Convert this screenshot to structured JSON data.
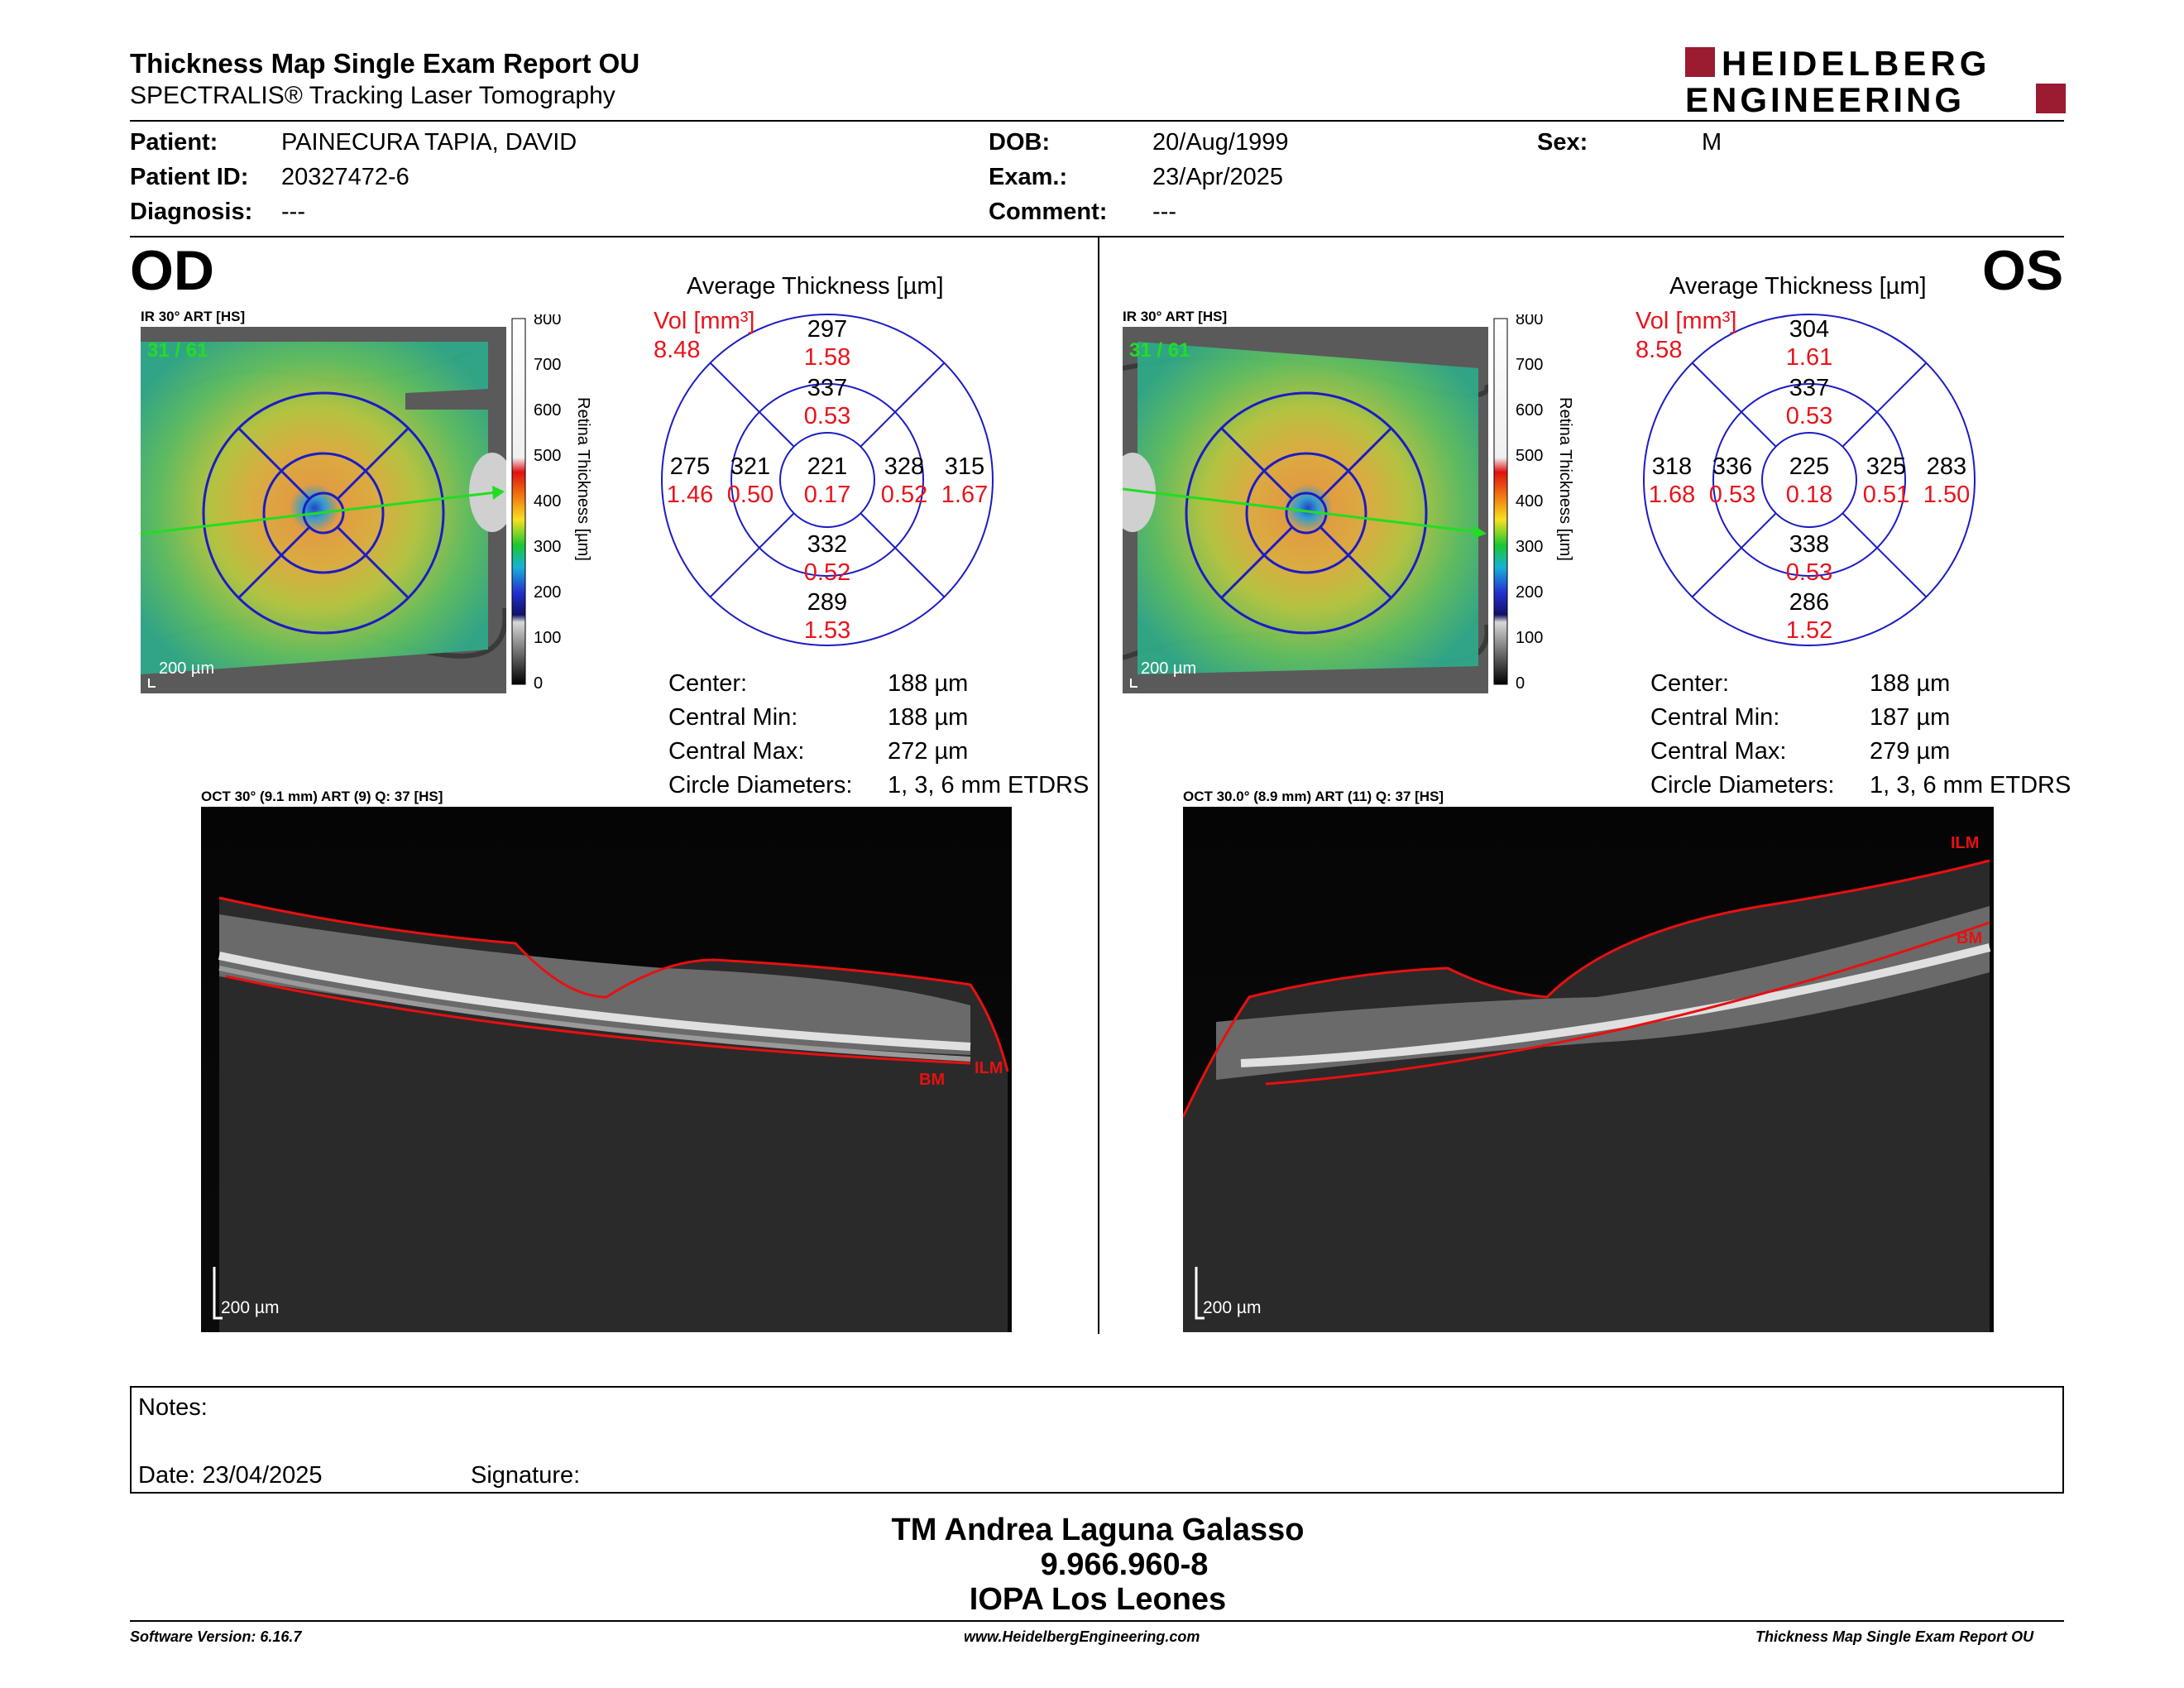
{
  "header": {
    "title": "Thickness Map Single Exam Report OU",
    "subtitle": "SPECTRALIS® Tracking Laser Tomography",
    "logo_line1": "HEIDELBERG",
    "logo_line2": "ENGINEERING",
    "brand_color": "#9b1b30"
  },
  "patient": {
    "patient_label": "Patient:",
    "patient_value": "PAINECURA TAPIA, DAVID",
    "id_label": "Patient ID:",
    "id_value": "20327472-6",
    "diag_label": "Diagnosis:",
    "diag_value": "---",
    "dob_label": "DOB:",
    "dob_value": "20/Aug/1999",
    "exam_label": "Exam.:",
    "exam_value": "23/Apr/2025",
    "comment_label": "Comment:",
    "comment_value": "---",
    "sex_label": "Sex:",
    "sex_value": "M"
  },
  "od": {
    "eye": "OD",
    "ir_caption": "IR 30° ART [HS]",
    "frame": "31 / 61",
    "scale": "200 µm",
    "colorbar_ticks": [
      "800",
      "700",
      "600",
      "500",
      "400",
      "300",
      "200",
      "100",
      "0"
    ],
    "colorbar_label": "Retina Thickness [µm]",
    "avg_title": "Average Thickness [µm]",
    "vol_label": "Vol [mm³]",
    "vol_total": "8.48",
    "etdrs": {
      "outer_sup": "297",
      "outer_sup_v": "1.58",
      "inner_sup": "337",
      "inner_sup_v": "0.53",
      "outer_temp": "275",
      "outer_temp_v": "1.46",
      "inner_temp": "321",
      "inner_temp_v": "0.50",
      "center": "221",
      "center_v": "0.17",
      "inner_nas": "328",
      "inner_nas_v": "0.52",
      "outer_nas": "315",
      "outer_nas_v": "1.67",
      "inner_inf": "332",
      "inner_inf_v": "0.52",
      "outer_inf": "289",
      "outer_inf_v": "1.53"
    },
    "stats": [
      {
        "label": "Center:",
        "value": "188 µm"
      },
      {
        "label": "Central Min:",
        "value": "188 µm"
      },
      {
        "label": "Central Max:",
        "value": "272 µm"
      },
      {
        "label": "Circle Diameters:",
        "value": "1, 3, 6 mm ETDRS"
      }
    ],
    "oct_caption": "OCT 30° (9.1 mm) ART (9) Q: 37 [HS]",
    "oct_scale": "200 µm",
    "ilm": "ILM",
    "bm": "BM"
  },
  "os": {
    "eye": "OS",
    "ir_caption": "IR 30° ART [HS]",
    "frame": "31 / 61",
    "scale": "200 µm",
    "colorbar_ticks": [
      "800",
      "700",
      "600",
      "500",
      "400",
      "300",
      "200",
      "100",
      "0"
    ],
    "colorbar_label": "Retina Thickness [µm]",
    "avg_title": "Average Thickness [µm]",
    "vol_label": "Vol [mm³]",
    "vol_total": "8.58",
    "etdrs": {
      "outer_sup": "304",
      "outer_sup_v": "1.61",
      "inner_sup": "337",
      "inner_sup_v": "0.53",
      "outer_temp": "318",
      "outer_temp_v": "1.68",
      "inner_temp": "336",
      "inner_temp_v": "0.53",
      "center": "225",
      "center_v": "0.18",
      "inner_nas": "325",
      "inner_nas_v": "0.51",
      "outer_nas": "283",
      "outer_nas_v": "1.50",
      "inner_inf": "338",
      "inner_inf_v": "0.53",
      "outer_inf": "286",
      "outer_inf_v": "1.52"
    },
    "stats": [
      {
        "label": "Center:",
        "value": "188 µm"
      },
      {
        "label": "Central Min:",
        "value": "187 µm"
      },
      {
        "label": "Central Max:",
        "value": "279 µm"
      },
      {
        "label": "Circle Diameters:",
        "value": "1, 3, 6 mm ETDRS"
      }
    ],
    "oct_caption": "OCT 30.0° (8.9 mm) ART (11) Q: 37 [HS]",
    "oct_scale": "200 µm",
    "ilm": "ILM",
    "bm": "BM"
  },
  "notes": {
    "notes_label": "Notes:",
    "date_label": "Date: 23/04/2025",
    "signature_label": "Signature:"
  },
  "signature": {
    "name": "TM Andrea Laguna Galasso",
    "id": "9.966.960-8",
    "org": "IOPA Los Leones"
  },
  "footer": {
    "software": "Software Version: 6.16.7",
    "website": "www.HeidelbergEngineering.com",
    "report": "Thickness Map Single Exam Report OU"
  },
  "colors": {
    "value_red": "#e8141c",
    "circle_blue": "#1c1cc4",
    "green": "#22dd22"
  }
}
